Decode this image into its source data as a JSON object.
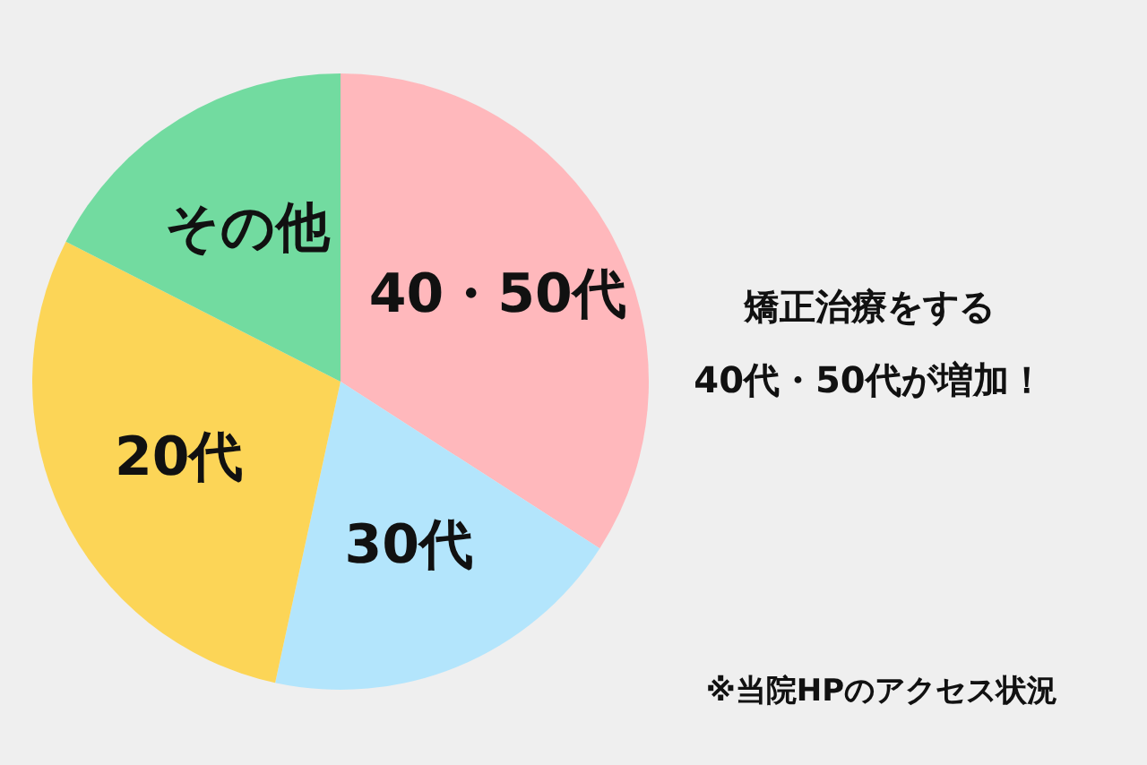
{
  "chart_data": {
    "type": "pie",
    "categories": [
      "40・50代",
      "30代",
      "20代",
      "その他"
    ],
    "values": [
      34.1,
      19.3,
      29.1,
      17.5
    ],
    "colors": [
      "#ffb8bc",
      "#b3e5fc",
      "#fcd557",
      "#72dba0"
    ],
    "annotations": [
      "矯正治療をする",
      "40代・50代が増加！",
      "※当院HPのアクセス状況"
    ]
  }
}
